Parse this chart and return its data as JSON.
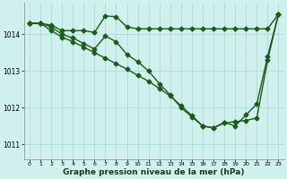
{
  "title": "Graphe pression niveau de la mer (hPa)",
  "bg_color": "#cff0ec",
  "grid_color": "#aaddd8",
  "line_color": "#1a5c1a",
  "xlim": [
    -0.5,
    23.5
  ],
  "ylim": [
    1010.6,
    1014.85
  ],
  "yticks": [
    1011,
    1012,
    1013,
    1014
  ],
  "xticks": [
    0,
    1,
    2,
    3,
    4,
    5,
    6,
    7,
    8,
    9,
    10,
    11,
    12,
    13,
    14,
    15,
    16,
    17,
    18,
    19,
    20,
    21,
    22,
    23
  ],
  "line1_x": [
    0,
    1,
    2,
    3,
    4,
    5,
    6,
    7,
    8,
    9,
    10,
    11,
    12,
    13,
    14,
    15,
    16,
    17,
    18,
    19,
    20,
    21,
    22,
    23
  ],
  "line1_y": [
    1014.3,
    1014.3,
    1014.25,
    1014.1,
    1014.1,
    1014.1,
    1014.05,
    1014.5,
    1014.48,
    1014.2,
    1014.15,
    1014.15,
    1014.15,
    1014.15,
    1014.15,
    1014.15,
    1014.15,
    1014.15,
    1014.15,
    1014.15,
    1014.15,
    1014.15,
    1014.15,
    1014.55
  ],
  "line2_x": [
    0,
    1,
    2,
    3,
    4,
    5,
    6,
    7,
    8,
    9,
    10,
    11,
    12,
    13,
    14,
    15,
    16,
    17,
    18,
    19,
    20,
    21,
    22,
    23
  ],
  "line2_y": [
    1014.3,
    1014.3,
    1014.2,
    1014.0,
    1013.9,
    1013.75,
    1013.6,
    1013.95,
    1013.8,
    1013.45,
    1013.25,
    1013.0,
    1012.65,
    1012.35,
    1012.0,
    1011.75,
    1011.5,
    1011.45,
    1011.6,
    1011.5,
    1011.8,
    1012.1,
    1013.4,
    1014.55
  ],
  "line3_x": [
    0,
    1,
    2,
    3,
    4,
    5,
    6,
    7,
    8,
    9,
    10,
    11,
    12,
    13,
    14,
    15,
    16,
    17,
    18,
    19,
    20,
    21,
    22,
    23
  ],
  "line3_y": [
    1014.3,
    1014.3,
    1014.1,
    1013.92,
    1013.8,
    1013.65,
    1013.5,
    1013.35,
    1013.2,
    1013.05,
    1012.88,
    1012.72,
    1012.52,
    1012.32,
    1012.05,
    1011.78,
    1011.5,
    1011.45,
    1011.58,
    1011.62,
    1011.65,
    1011.72,
    1013.3,
    1014.55
  ],
  "marker": "D",
  "markersize": 2.5,
  "linewidth": 1.0,
  "xlabel_fontsize": 6.5,
  "xtick_fontsize": 4.5,
  "ytick_fontsize": 5.5
}
